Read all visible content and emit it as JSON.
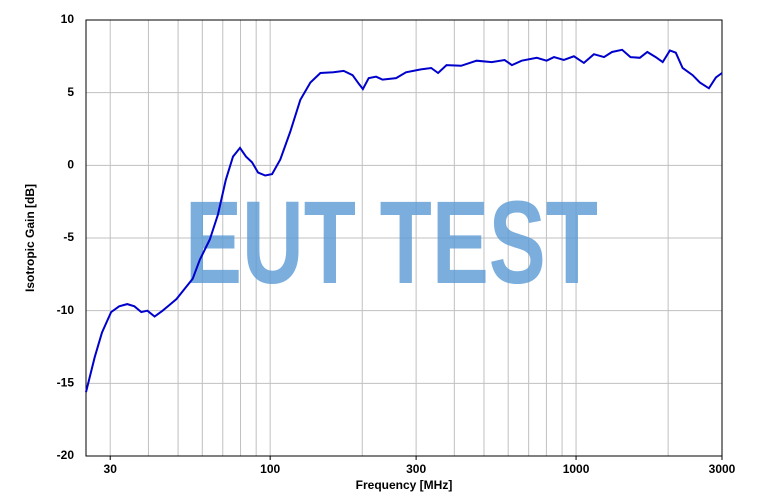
{
  "chart_data": {
    "type": "line",
    "xlabel": "Frequency [MHz]",
    "ylabel": "Isotropic Gain [dB]",
    "annotation": "EUT TEST",
    "xscale": "log",
    "grid": true,
    "xlim": [
      25,
      3000
    ],
    "ylim": [
      -20,
      10
    ],
    "xticks": [
      30,
      100,
      300,
      1000,
      3000
    ],
    "x_gridlines": [
      30,
      40,
      50,
      60,
      70,
      80,
      90,
      100,
      200,
      300,
      400,
      500,
      600,
      700,
      800,
      900,
      1000,
      2000
    ],
    "yticks": [
      -20,
      -15,
      -10,
      -5,
      0,
      5,
      10
    ],
    "x": [
      25,
      26.7,
      28.2,
      30.2,
      32.1,
      34.1,
      36,
      37.9,
      39.7,
      41.9,
      44.5,
      46.9,
      49.4,
      52.5,
      55.8,
      58.9,
      63.5,
      67.5,
      71.6,
      75.6,
      79.7,
      83.4,
      87.3,
      91.3,
      96.3,
      101.5,
      107.9,
      116.3,
      125.5,
      135.4,
      146,
      161,
      174,
      186,
      195,
      201,
      210,
      222,
      233,
      258,
      278,
      311,
      336,
      354,
      377,
      421,
      473,
      530,
      584,
      617,
      664,
      744,
      801,
      847,
      912,
      984,
      1061,
      1144,
      1234,
      1311,
      1414,
      1507,
      1616,
      1710,
      1821,
      1920,
      2026,
      2119,
      2230,
      2406,
      2539,
      2719,
      2866,
      3000
    ],
    "series": [
      {
        "color": "#0000cc",
        "values": [
          -15.6,
          -13.2,
          -11.5,
          -10.1,
          -9.7,
          -9.55,
          -9.7,
          -10.1,
          -10.0,
          -10.4,
          -10.0,
          -9.6,
          -9.2,
          -8.5,
          -7.8,
          -6.5,
          -5.1,
          -3.4,
          -1.0,
          0.6,
          1.2,
          0.6,
          0.2,
          -0.5,
          -0.7,
          -0.6,
          0.4,
          2.3,
          4.5,
          5.7,
          6.35,
          6.4,
          6.5,
          6.2,
          5.6,
          5.25,
          6.0,
          6.1,
          5.9,
          6.0,
          6.4,
          6.6,
          6.7,
          6.35,
          6.9,
          6.85,
          7.2,
          7.1,
          7.25,
          6.9,
          7.2,
          7.4,
          7.2,
          7.45,
          7.25,
          7.5,
          7.05,
          7.65,
          7.45,
          7.8,
          7.95,
          7.45,
          7.4,
          7.8,
          7.45,
          7.1,
          7.9,
          7.75,
          6.7,
          6.2,
          5.7,
          5.3,
          6.05,
          6.35
        ]
      }
    ]
  }
}
